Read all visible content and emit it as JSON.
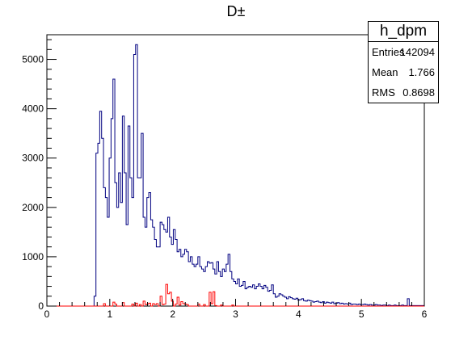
{
  "chart_data": {
    "type": "histogram",
    "title": "D±",
    "xlabel": "",
    "ylabel": "",
    "xlim": [
      0,
      6
    ],
    "ylim": [
      0,
      5500
    ],
    "x_ticks": [
      0,
      1,
      2,
      3,
      4,
      5,
      6
    ],
    "y_ticks": [
      0,
      1000,
      2000,
      3000,
      4000,
      5000
    ],
    "grid": false,
    "bin_width": 0.03,
    "series": [
      {
        "color": "#000080",
        "bins": [
          [
            0.75,
            200
          ],
          [
            0.78,
            3100
          ],
          [
            0.81,
            3300
          ],
          [
            0.84,
            3950
          ],
          [
            0.87,
            3400
          ],
          [
            0.9,
            2400
          ],
          [
            0.93,
            2200
          ],
          [
            0.96,
            1800
          ],
          [
            0.99,
            3000
          ],
          [
            1.02,
            3800
          ],
          [
            1.05,
            4600
          ],
          [
            1.08,
            2500
          ],
          [
            1.11,
            2000
          ],
          [
            1.14,
            2700
          ],
          [
            1.17,
            2100
          ],
          [
            1.2,
            3850
          ],
          [
            1.23,
            2700
          ],
          [
            1.26,
            1650
          ],
          [
            1.29,
            3650
          ],
          [
            1.32,
            2600
          ],
          [
            1.35,
            2200
          ],
          [
            1.38,
            5100
          ],
          [
            1.41,
            5300
          ],
          [
            1.44,
            2600
          ],
          [
            1.47,
            2600
          ],
          [
            1.5,
            3500
          ],
          [
            1.53,
            1800
          ],
          [
            1.56,
            1600
          ],
          [
            1.59,
            2200
          ],
          [
            1.62,
            2300
          ],
          [
            1.65,
            1750
          ],
          [
            1.68,
            1600
          ],
          [
            1.71,
            1350
          ],
          [
            1.74,
            1200
          ],
          [
            1.77,
            1200
          ],
          [
            1.8,
            1700
          ],
          [
            1.83,
            1650
          ],
          [
            1.86,
            1550
          ],
          [
            1.89,
            1500
          ],
          [
            1.92,
            1800
          ],
          [
            1.95,
            1400
          ],
          [
            1.98,
            1250
          ],
          [
            2.01,
            1550
          ],
          [
            2.04,
            1350
          ],
          [
            2.07,
            1100
          ],
          [
            2.1,
            1150
          ],
          [
            2.13,
            1000
          ],
          [
            2.16,
            1050
          ],
          [
            2.19,
            1150
          ],
          [
            2.22,
            1100
          ],
          [
            2.25,
            900
          ],
          [
            2.28,
            1000
          ],
          [
            2.31,
            850
          ],
          [
            2.34,
            800
          ],
          [
            2.37,
            850
          ],
          [
            2.4,
            1000
          ],
          [
            2.43,
            800
          ],
          [
            2.46,
            750
          ],
          [
            2.49,
            700
          ],
          [
            2.52,
            800
          ],
          [
            2.55,
            900
          ],
          [
            2.58,
            870
          ],
          [
            2.61,
            880
          ],
          [
            2.64,
            750
          ],
          [
            2.67,
            650
          ],
          [
            2.7,
            900
          ],
          [
            2.73,
            700
          ],
          [
            2.76,
            600
          ],
          [
            2.79,
            750
          ],
          [
            2.82,
            700
          ],
          [
            2.85,
            850
          ],
          [
            2.88,
            1050
          ],
          [
            2.91,
            700
          ],
          [
            2.94,
            550
          ],
          [
            2.97,
            500
          ],
          [
            3.0,
            450
          ],
          [
            3.03,
            550
          ],
          [
            3.06,
            400
          ],
          [
            3.09,
            420
          ],
          [
            3.12,
            500
          ],
          [
            3.15,
            350
          ],
          [
            3.18,
            380
          ],
          [
            3.21,
            400
          ],
          [
            3.24,
            380
          ],
          [
            3.27,
            430
          ],
          [
            3.3,
            350
          ],
          [
            3.33,
            400
          ],
          [
            3.36,
            450
          ],
          [
            3.39,
            400
          ],
          [
            3.42,
            350
          ],
          [
            3.45,
            420
          ],
          [
            3.48,
            380
          ],
          [
            3.51,
            300
          ],
          [
            3.54,
            320
          ],
          [
            3.57,
            430
          ],
          [
            3.6,
            250
          ],
          [
            3.63,
            180
          ],
          [
            3.66,
            200
          ],
          [
            3.69,
            250
          ],
          [
            3.72,
            230
          ],
          [
            3.75,
            200
          ],
          [
            3.78,
            180
          ],
          [
            3.81,
            150
          ],
          [
            3.84,
            190
          ],
          [
            3.87,
            170
          ],
          [
            3.9,
            150
          ],
          [
            3.93,
            140
          ],
          [
            3.96,
            160
          ],
          [
            3.99,
            120
          ],
          [
            4.02,
            130
          ],
          [
            4.05,
            150
          ],
          [
            4.08,
            110
          ],
          [
            4.11,
            100
          ],
          [
            4.14,
            120
          ],
          [
            4.17,
            110
          ],
          [
            4.2,
            100
          ],
          [
            4.23,
            80
          ],
          [
            4.26,
            90
          ],
          [
            4.29,
            100
          ],
          [
            4.32,
            80
          ],
          [
            4.35,
            70
          ],
          [
            4.38,
            90
          ],
          [
            4.41,
            60
          ],
          [
            4.44,
            80
          ],
          [
            4.47,
            70
          ],
          [
            4.5,
            60
          ],
          [
            4.53,
            80
          ],
          [
            4.56,
            50
          ],
          [
            4.59,
            60
          ],
          [
            4.62,
            70
          ],
          [
            4.65,
            50
          ],
          [
            4.68,
            60
          ],
          [
            4.71,
            40
          ],
          [
            4.74,
            50
          ],
          [
            4.77,
            40
          ],
          [
            4.8,
            60
          ],
          [
            4.83,
            30
          ],
          [
            4.86,
            40
          ],
          [
            4.89,
            40
          ],
          [
            4.92,
            30
          ],
          [
            4.95,
            40
          ],
          [
            4.98,
            30
          ],
          [
            5.01,
            30
          ],
          [
            5.04,
            40
          ],
          [
            5.07,
            30
          ],
          [
            5.1,
            20
          ],
          [
            5.13,
            30
          ],
          [
            5.16,
            20
          ],
          [
            5.19,
            20
          ],
          [
            5.22,
            30
          ],
          [
            5.25,
            20
          ],
          [
            5.28,
            20
          ],
          [
            5.31,
            10
          ],
          [
            5.34,
            20
          ],
          [
            5.37,
            20
          ],
          [
            5.4,
            10
          ],
          [
            5.43,
            20
          ],
          [
            5.46,
            10
          ],
          [
            5.49,
            10
          ],
          [
            5.52,
            20
          ],
          [
            5.55,
            10
          ],
          [
            5.58,
            10
          ],
          [
            5.61,
            10
          ],
          [
            5.64,
            20
          ],
          [
            5.67,
            10
          ],
          [
            5.7,
            10
          ],
          [
            5.73,
            150
          ],
          [
            5.76,
            10
          ],
          [
            5.79,
            10
          ],
          [
            5.82,
            10
          ],
          [
            5.85,
            10
          ],
          [
            5.88,
            10
          ],
          [
            5.91,
            10
          ],
          [
            5.94,
            10
          ],
          [
            5.97,
            10
          ]
        ]
      },
      {
        "color": "#ff0000",
        "bins": [
          [
            0.9,
            50
          ],
          [
            1.05,
            80
          ],
          [
            1.08,
            40
          ],
          [
            1.2,
            70
          ],
          [
            1.35,
            40
          ],
          [
            1.41,
            60
          ],
          [
            1.47,
            30
          ],
          [
            1.53,
            100
          ],
          [
            1.56,
            30
          ],
          [
            1.59,
            40
          ],
          [
            1.62,
            60
          ],
          [
            1.68,
            50
          ],
          [
            1.71,
            30
          ],
          [
            1.74,
            50
          ],
          [
            1.8,
            200
          ],
          [
            1.83,
            30
          ],
          [
            1.86,
            40
          ],
          [
            1.89,
            440
          ],
          [
            1.92,
            250
          ],
          [
            1.95,
            280
          ],
          [
            1.98,
            100
          ],
          [
            2.04,
            40
          ],
          [
            2.07,
            180
          ],
          [
            2.1,
            20
          ],
          [
            2.13,
            90
          ],
          [
            2.16,
            50
          ],
          [
            2.19,
            40
          ],
          [
            2.22,
            30
          ],
          [
            2.4,
            40
          ],
          [
            2.49,
            30
          ],
          [
            2.58,
            280
          ],
          [
            2.61,
            50
          ],
          [
            2.64,
            290
          ],
          [
            2.67,
            10
          ],
          [
            2.76,
            20
          ],
          [
            2.94,
            20
          ]
        ]
      }
    ]
  },
  "stats_box": {
    "name": "h_dpm",
    "entries_label": "Entries",
    "entries_value": "142094",
    "mean_label": "Mean",
    "mean_value": "1.766",
    "rms_label": "RMS",
    "rms_value": "0.8698"
  }
}
